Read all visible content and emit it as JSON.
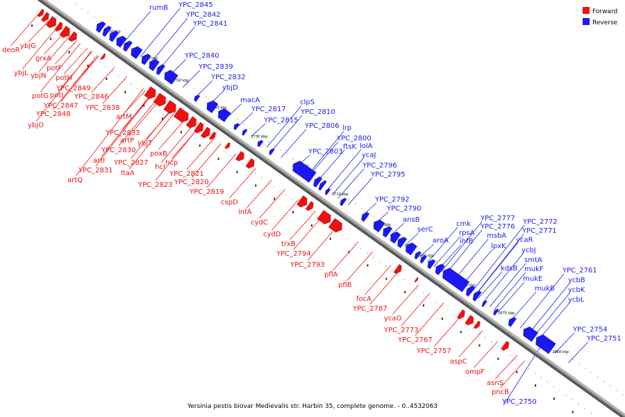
{
  "caption": "Yersinia pestis biovar Medievalis str. Harbin 35, complete genome. - 0..4532063",
  "legend": [
    {
      "label": "Forward",
      "color": "#ee1111"
    },
    {
      "label": "Reverse",
      "color": "#1a1aee"
    }
  ],
  "ticks": [
    "2770 kbp",
    "2760 kbp",
    "2750 kbp",
    "2740 kbp",
    "2730 kbp",
    "2720 kbp",
    "2710 kbp",
    "2700 kbp",
    "2690 kbp",
    "2680 kbp",
    "2670 kbp",
    "2660 kbp"
  ],
  "reverse_genes": [
    "rumB",
    "YPC_2845",
    "YPC_2842",
    "YPC_2841",
    "YPC_2840",
    "YPC_2839",
    "YPC_2832",
    "ybjD",
    "macA",
    "YPC_2817",
    "clpS",
    "YPC_2815",
    "YPC_2810",
    "YPC_2806",
    "lrp",
    "YPC_2800",
    "ftsK",
    "lolA",
    "ycaJ",
    "YPC_2803",
    "YPC_2796",
    "YPC_2795",
    "YPC_2792",
    "YPC_2790",
    "ansB",
    "serC",
    "aroA",
    "cmk",
    "rpsA",
    "ihfB",
    "YPC_2777",
    "YPC_2776",
    "msbA",
    "lpxK",
    "YPC_2772",
    "ycaR",
    "YPC_2771",
    "kdsB",
    "ycbJ",
    "smtA",
    "mukF",
    "mukE",
    "mukB",
    "YPC_2761",
    "ycbB",
    "ycbK",
    "ycbL",
    "YPC_2754",
    "YPC_2751",
    "YPC_2750"
  ],
  "forward_genes": [
    "deoR",
    "ybjG",
    "grxA",
    "ybjL",
    "ybjN",
    "potF",
    "potH",
    "YPC_2849",
    "potG",
    "potI",
    "YPC_2846",
    "YPC_2847",
    "YPC_2848",
    "ybjO",
    "artM",
    "YPC_2838",
    "YPC_2833",
    "artP",
    "ybjT",
    "YPC_2830",
    "poxB",
    "artI",
    "YPC_2827",
    "hcp",
    "hcr",
    "YPC_2831",
    "ltaA",
    "artQ",
    "YPC_2821",
    "YPC_2823",
    "YPC_2820",
    "YPC_2819",
    "cspD",
    "infA",
    "cydC",
    "cydD",
    "trxB",
    "YPC_2794",
    "YPC_2793",
    "pflA",
    "pflB",
    "focA",
    "YPC_2787",
    "ycaO",
    "YPC_2773",
    "YPC_2767",
    "YPC_2757",
    "aspC",
    "ompF",
    "asnS",
    "pncB"
  ]
}
